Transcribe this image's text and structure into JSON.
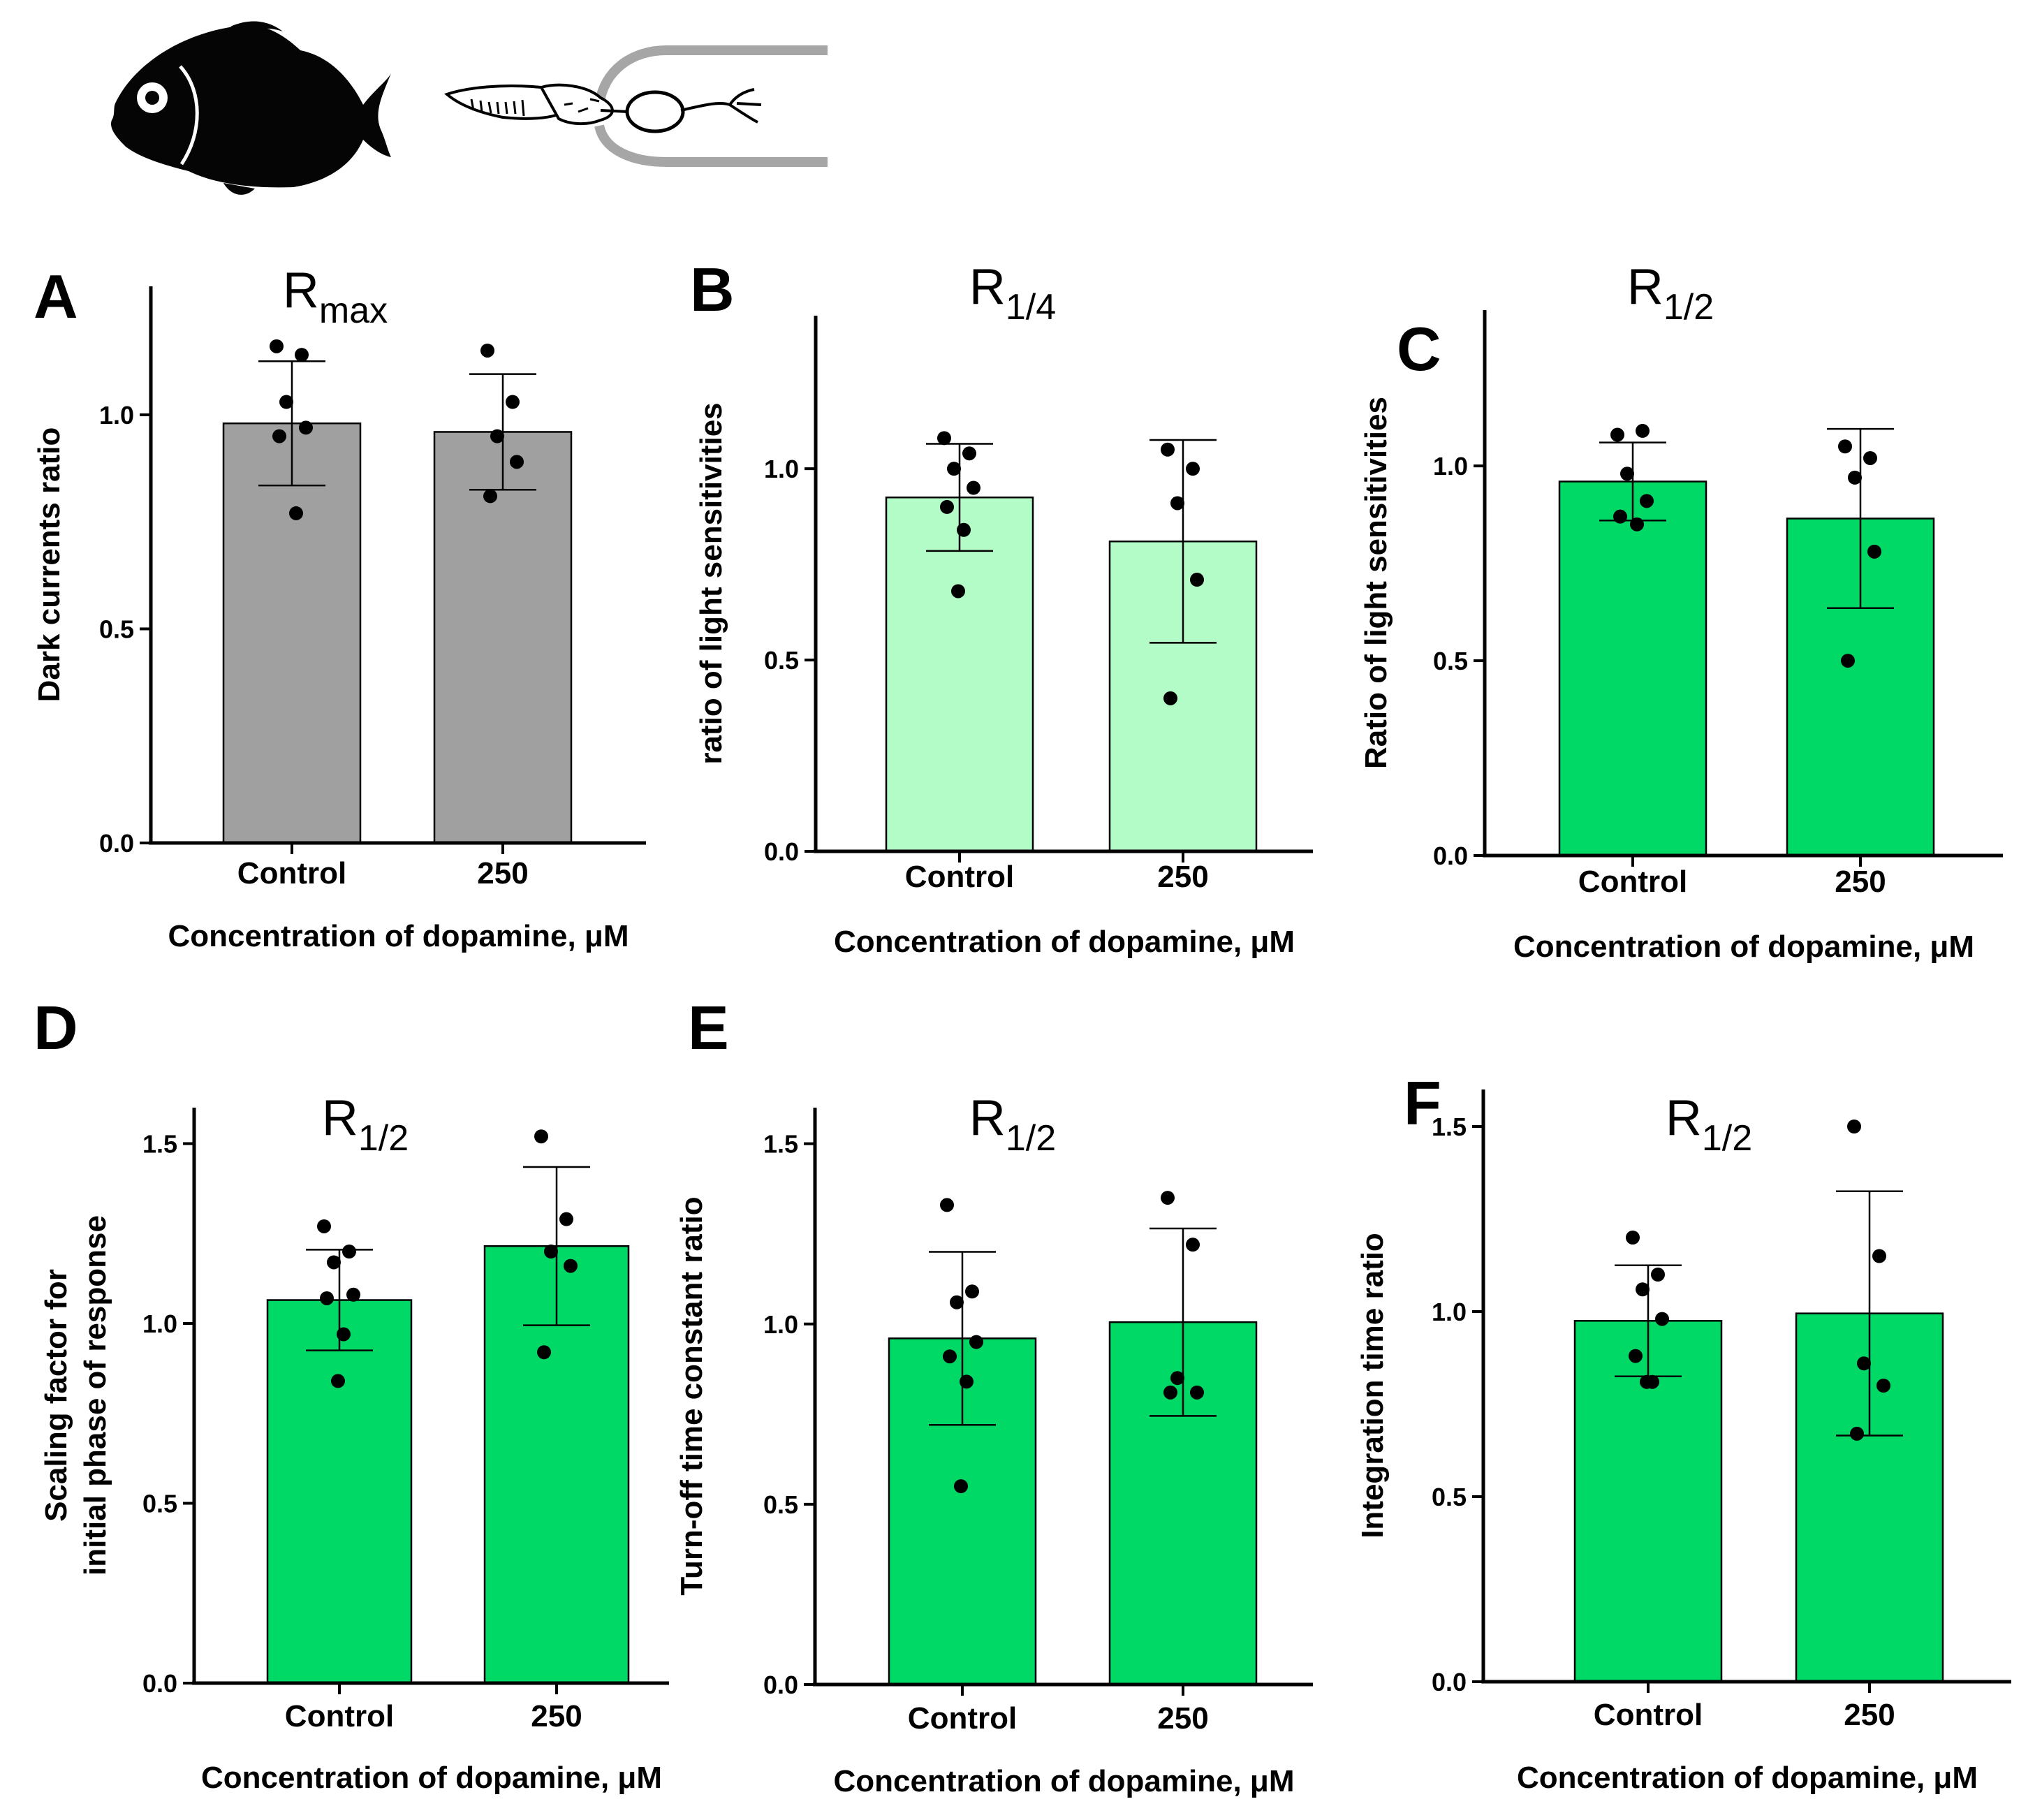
{
  "figure": {
    "illustrations": [
      "fish-silhouette",
      "rod-photoreceptor-in-pipette"
    ]
  },
  "chart_data": [
    {
      "panel": "A",
      "type": "bar",
      "title_main": "R",
      "title_sub": "max",
      "ylabel": "Dark currents ratio",
      "xlabel": "Concentration of dopamine, μM",
      "categories": [
        "Control",
        "250"
      ],
      "values": [
        0.98,
        0.96
      ],
      "errors": [
        0.145,
        0.135
      ],
      "points": [
        [
          1.16,
          1.14,
          1.03,
          0.97,
          0.95,
          0.77
        ],
        [
          1.15,
          1.03,
          0.95,
          0.89,
          0.81
        ]
      ],
      "bar_color": "#a0a0a0",
      "ylim": [
        0,
        1.3
      ],
      "yticks": [
        0.0,
        0.5,
        1.0
      ],
      "ytick_labels": [
        "0.0",
        "0.5",
        "1.0"
      ]
    },
    {
      "panel": "B",
      "type": "bar",
      "title_main": "R",
      "title_sub": "1/4",
      "ylabel": "ratio of light sensitivities",
      "xlabel": "Concentration of dopamine, μM",
      "categories": [
        "Control",
        "250"
      ],
      "values": [
        0.925,
        0.81
      ],
      "errors": [
        0.14,
        0.265
      ],
      "points": [
        [
          1.08,
          1.04,
          1.0,
          0.95,
          0.9,
          0.84,
          0.68
        ],
        [
          1.05,
          1.0,
          0.91,
          0.71,
          0.4
        ]
      ],
      "bar_color": "#b3fcc8",
      "ylim": [
        0,
        1.4
      ],
      "yticks": [
        0.0,
        0.5,
        1.0
      ],
      "ytick_labels": [
        "0.0",
        "0.5",
        "1.0"
      ]
    },
    {
      "panel": "C",
      "type": "bar",
      "title_main": "R",
      "title_sub": "1/2",
      "ylabel": "Ratio of light sensitivities",
      "xlabel": "Concentration of dopamine, μM",
      "categories": [
        "Control",
        "250"
      ],
      "values": [
        0.96,
        0.865
      ],
      "errors": [
        0.1,
        0.23
      ],
      "points": [
        [
          1.08,
          1.09,
          0.98,
          0.91,
          0.87,
          0.85
        ],
        [
          1.05,
          1.02,
          0.97,
          0.78,
          0.5
        ]
      ],
      "bar_color": "#00d966",
      "ylim": [
        0,
        1.4
      ],
      "yticks": [
        0.0,
        0.5,
        1.0
      ],
      "ytick_labels": [
        "0.0",
        "0.5",
        "1.0"
      ]
    },
    {
      "panel": "D",
      "type": "bar",
      "title_main": "R",
      "title_sub": "1/2",
      "ylabel": "Scaling factor for initial phase of response",
      "ylabel_lines": [
        "Scaling factor for",
        "initial phase of response"
      ],
      "xlabel": "Concentration of dopamine, μM",
      "categories": [
        "Control",
        "250"
      ],
      "values": [
        1.065,
        1.215
      ],
      "errors": [
        0.14,
        0.22
      ],
      "points": [
        [
          1.27,
          1.2,
          1.17,
          1.08,
          1.07,
          0.97,
          0.84
        ],
        [
          1.52,
          1.29,
          1.2,
          1.16,
          0.92
        ]
      ],
      "bar_color": "#00d966",
      "ylim": [
        0,
        1.6
      ],
      "yticks": [
        0.0,
        0.5,
        1.0,
        1.5
      ],
      "ytick_labels": [
        "0.0",
        "0.5",
        "1.0",
        "1.5"
      ]
    },
    {
      "panel": "E",
      "type": "bar",
      "title_main": "R",
      "title_sub": "1/2",
      "ylabel": "Turn-off time constant ratio",
      "xlabel": "Concentration of dopamine, μM",
      "categories": [
        "Control",
        "250"
      ],
      "values": [
        0.96,
        1.005
      ],
      "errors": [
        0.24,
        0.26
      ],
      "points": [
        [
          1.33,
          1.09,
          1.06,
          0.95,
          0.91,
          0.84,
          0.55
        ],
        [
          1.35,
          1.22,
          0.85,
          0.81,
          0.81
        ]
      ],
      "bar_color": "#00d966",
      "ylim": [
        0,
        1.6
      ],
      "yticks": [
        0.0,
        0.5,
        1.0,
        1.5
      ],
      "ytick_labels": [
        "0.0",
        "0.5",
        "1.0",
        "1.5"
      ]
    },
    {
      "panel": "F",
      "type": "bar",
      "title_main": "R",
      "title_sub": "1/2",
      "ylabel": "Integration time ratio",
      "xlabel": "Concentration of dopamine, μM",
      "categories": [
        "Control",
        "250"
      ],
      "values": [
        0.975,
        0.995
      ],
      "errors": [
        0.15,
        0.33
      ],
      "points": [
        [
          1.2,
          1.1,
          1.06,
          0.98,
          0.88,
          0.81,
          0.81
        ],
        [
          1.5,
          1.15,
          0.86,
          0.8,
          0.67
        ]
      ],
      "bar_color": "#00d966",
      "ylim": [
        0,
        1.6
      ],
      "yticks": [
        0.0,
        0.5,
        1.0,
        1.5
      ],
      "ytick_labels": [
        "0.0",
        "0.5",
        "1.0",
        "1.5"
      ]
    }
  ]
}
